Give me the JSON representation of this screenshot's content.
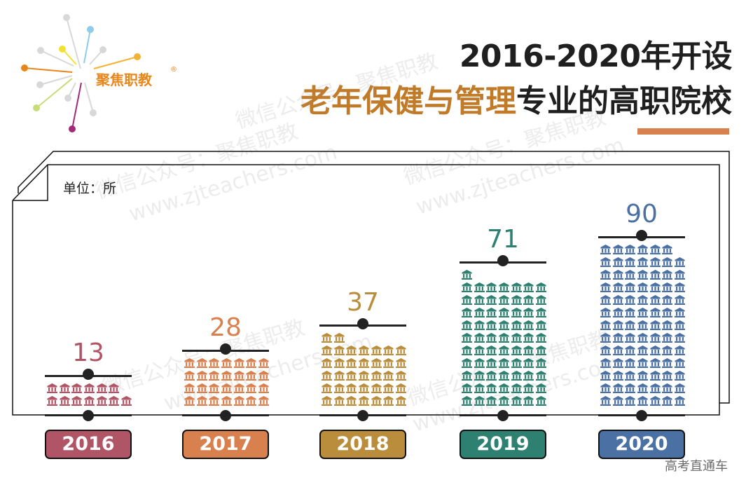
{
  "logo": {
    "text": "聚焦职教",
    "registered": "®"
  },
  "header": {
    "title_line1": "2016-2020年开设",
    "title_line2_highlight": "老年保健与管理",
    "title_line2_rest": "专业的高职院校",
    "underline_color": "#d9804f",
    "highlight_color": "#c17a28"
  },
  "unit_label": "单位：所",
  "footer": "高考直通车",
  "watermarks": [
    "微信公众号：聚焦职教",
    "www.zjteachers.com"
  ],
  "bars": [
    {
      "year": "2016",
      "value": "13",
      "color": "#b05566",
      "center": 126
    },
    {
      "year": "2017",
      "value": "28",
      "color": "#d9804f",
      "center": 322
    },
    {
      "year": "2018",
      "value": "37",
      "color": "#b98d3b",
      "center": 518
    },
    {
      "year": "2019",
      "value": "71",
      "color": "#2e8070",
      "center": 718
    },
    {
      "year": "2020",
      "value": "90",
      "color": "#4a70a4",
      "center": 916
    }
  ],
  "chart_data": {
    "type": "bar",
    "title": "2016-2020年开设老年保健与管理专业的高职院校",
    "categories": [
      "2016",
      "2017",
      "2018",
      "2019",
      "2020"
    ],
    "values": [
      13,
      28,
      37,
      71,
      90
    ],
    "unit": "所",
    "ylabel": "单位：所",
    "xlabel": "",
    "style": "pictograph (building icons, 7 per row)",
    "series_colors": [
      "#b05566",
      "#d9804f",
      "#b98d3b",
      "#2e8070",
      "#4a70a4"
    ],
    "grid": false,
    "legend": null
  }
}
